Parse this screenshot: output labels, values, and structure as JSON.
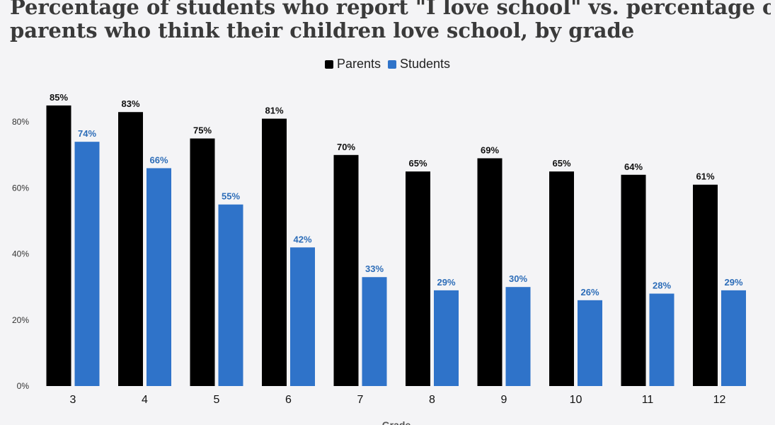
{
  "chart_data": {
    "type": "bar",
    "title_lines": [
      "Percentage of students who report \"I love school\" vs. percentage of",
      "parents who think their children love school, by grade"
    ],
    "xlabel": "Grade",
    "ylabel": "",
    "ylim": [
      0,
      90
    ],
    "y_ticks": [
      "0%",
      "20%",
      "40%",
      "60%",
      "80%"
    ],
    "y_tick_values": [
      0,
      20,
      40,
      60,
      80
    ],
    "categories": [
      "3",
      "4",
      "5",
      "6",
      "7",
      "8",
      "9",
      "10",
      "11",
      "12"
    ],
    "series": [
      {
        "name": "Parents",
        "color": "#000000",
        "label_color": "#111111",
        "values": [
          85,
          83,
          75,
          81,
          70,
          65,
          69,
          65,
          64,
          61
        ],
        "labels": [
          "85%",
          "83%",
          "75%",
          "81%",
          "70%",
          "65%",
          "69%",
          "65%",
          "64%",
          "61%"
        ]
      },
      {
        "name": "Students",
        "color": "#2f73c9",
        "label_color": "#2d6db8",
        "values": [
          74,
          66,
          55,
          42,
          33,
          29,
          30,
          26,
          28,
          29
        ],
        "labels": [
          "74%",
          "66%",
          "55%",
          "42%",
          "33%",
          "29%",
          "30%",
          "26%",
          "28%",
          "29%"
        ]
      }
    ],
    "grid": false,
    "legend_position": "top-center"
  }
}
